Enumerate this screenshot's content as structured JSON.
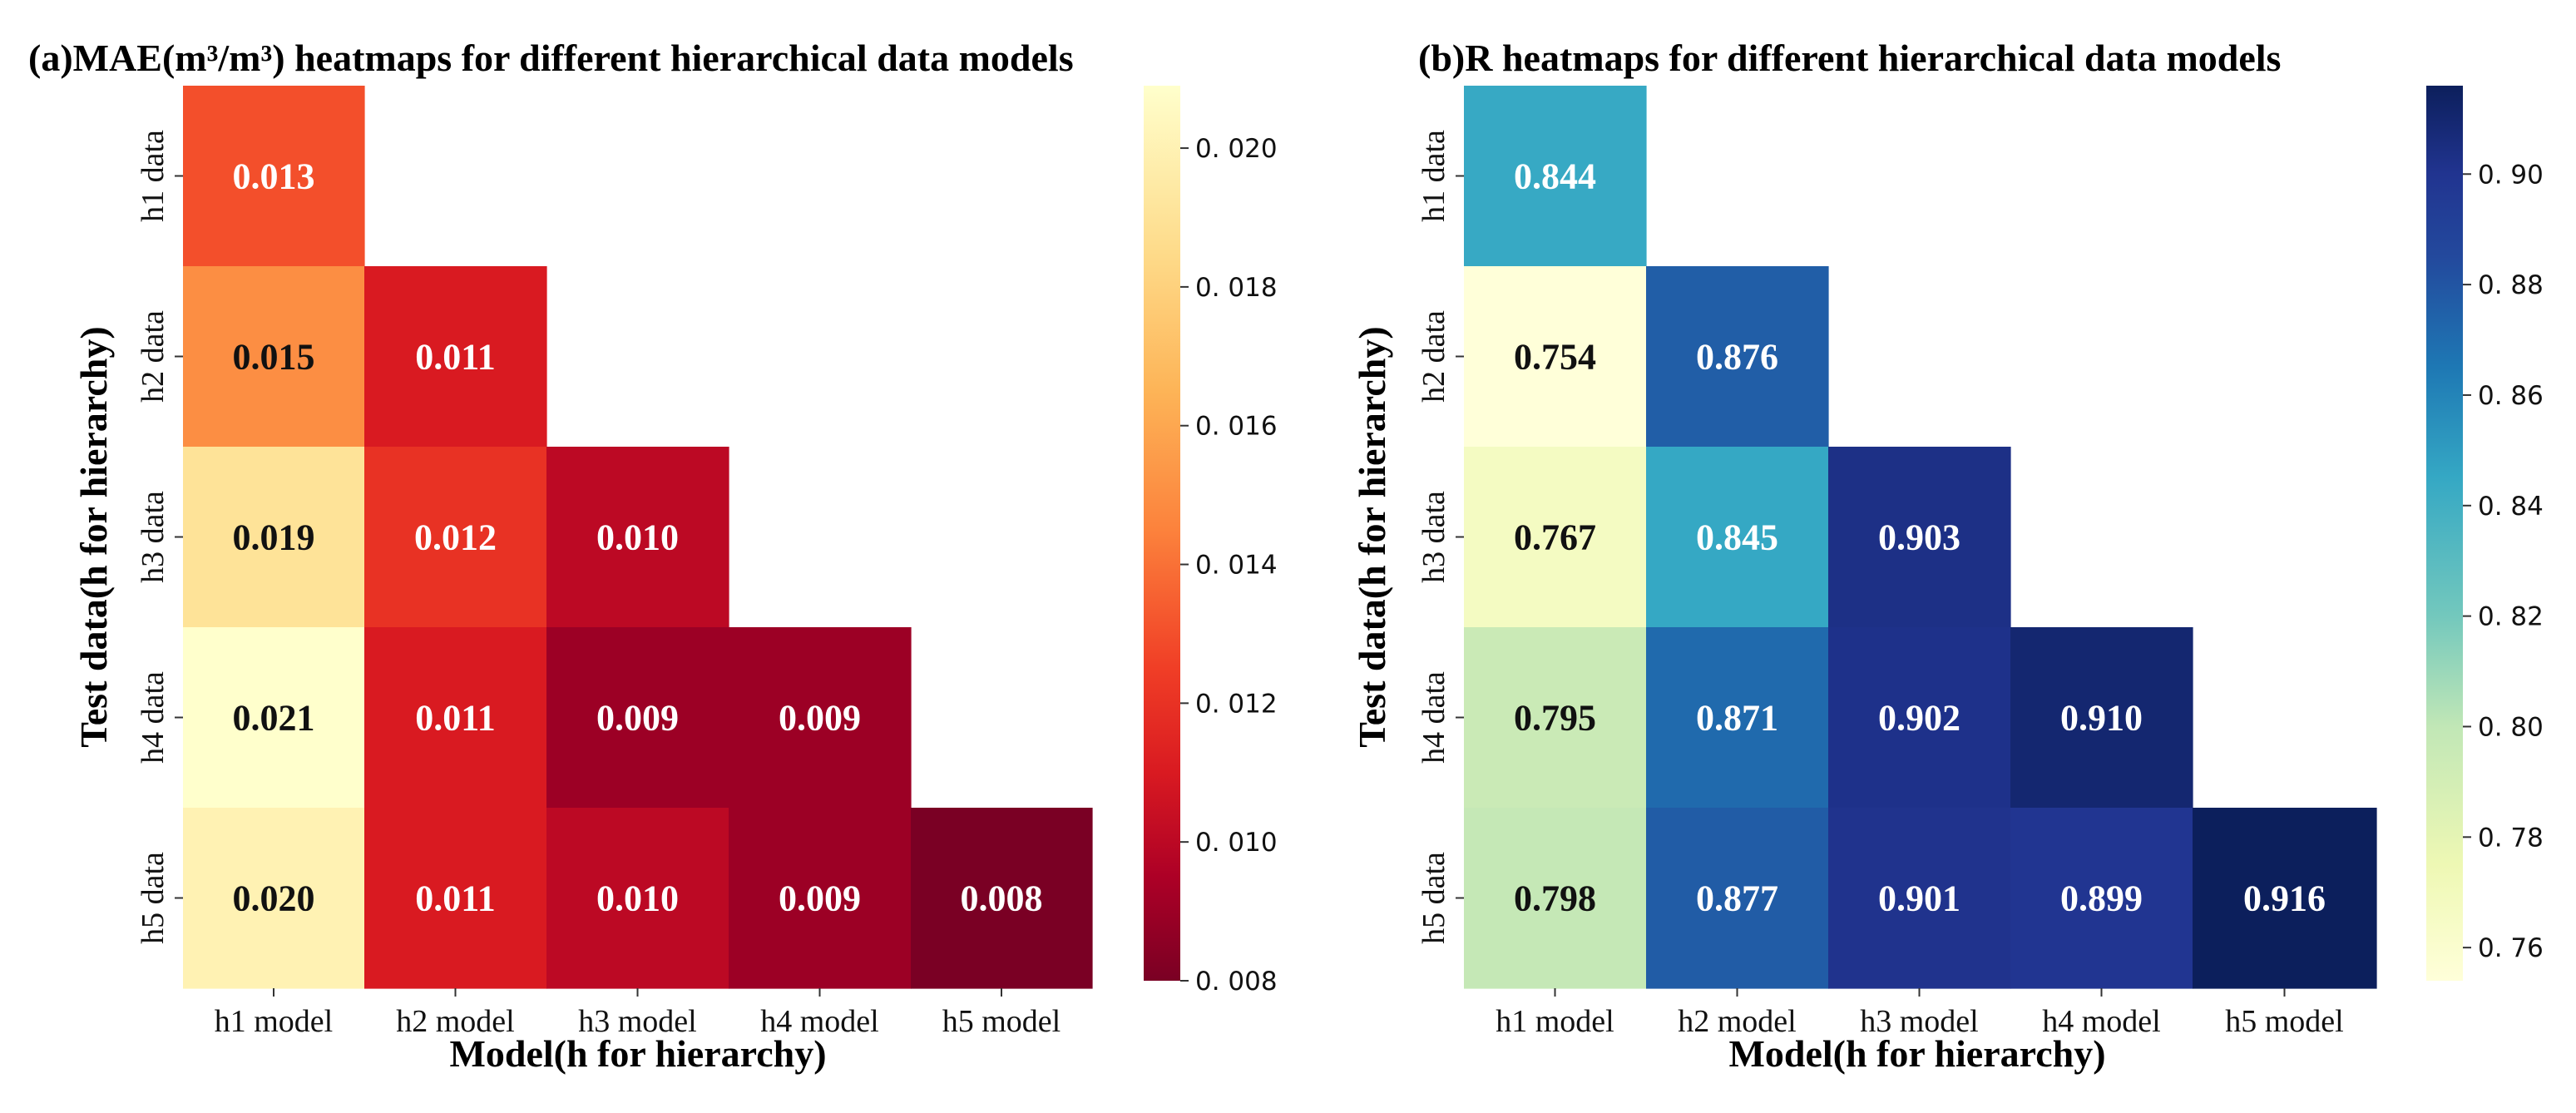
{
  "chart_data": [
    {
      "type": "heatmap",
      "title": "(a)MAE(m³/m³) heatmaps for different hierarchical data models",
      "xlabel": "Model(h for hierarchy)",
      "ylabel": "Test data(h for hierarchy)",
      "x_categories": [
        "h1 model",
        "h2 model",
        "h3 model",
        "h4 model",
        "h5 model"
      ],
      "y_categories": [
        "h1 data",
        "h2 data",
        "h3 data",
        "h4 data",
        "h5 data"
      ],
      "values": [
        [
          0.013,
          null,
          null,
          null,
          null
        ],
        [
          0.015,
          0.011,
          null,
          null,
          null
        ],
        [
          0.019,
          0.012,
          0.01,
          null,
          null
        ],
        [
          0.021,
          0.011,
          0.009,
          0.009,
          null
        ],
        [
          0.02,
          0.011,
          0.01,
          0.009,
          0.008
        ]
      ],
      "cell_labels": [
        [
          "0.013",
          "",
          "",
          "",
          ""
        ],
        [
          "0.015",
          "0.011",
          "",
          "",
          ""
        ],
        [
          "0.019",
          "0.012",
          "0.010",
          "",
          ""
        ],
        [
          "0.021",
          "0.011",
          "0.009",
          "0.009",
          ""
        ],
        [
          "0.020",
          "0.011",
          "0.010",
          "0.009",
          "0.008"
        ]
      ],
      "colormap": "YlOrRd_r",
      "colorbar": {
        "range": [
          0.008,
          0.0209
        ],
        "ticks": [
          0.008,
          0.01,
          0.012,
          0.014,
          0.016,
          0.018,
          0.02
        ],
        "tick_labels": [
          "0. 008",
          "0. 010",
          "0. 012",
          "0. 014",
          "0. 016",
          "0. 018",
          "0. 020"
        ],
        "stops": [
          {
            "value": 0.008,
            "color": "#7a0024"
          },
          {
            "value": 0.0095,
            "color": "#ad0026"
          },
          {
            "value": 0.011,
            "color": "#d91a21"
          },
          {
            "value": 0.0125,
            "color": "#f03e26"
          },
          {
            "value": 0.0145,
            "color": "#fc823c"
          },
          {
            "value": 0.0165,
            "color": "#fdb457"
          },
          {
            "value": 0.0185,
            "color": "#fedb8a"
          },
          {
            "value": 0.0209,
            "color": "#ffffcc"
          }
        ]
      }
    },
    {
      "type": "heatmap",
      "title": "(b)R heatmaps for different hierarchical data models",
      "xlabel": "Model(h for hierarchy)",
      "ylabel": "Test data(h for hierarchy)",
      "x_categories": [
        "h1 model",
        "h2 model",
        "h3 model",
        "h4 model",
        "h5 model"
      ],
      "y_categories": [
        "h1 data",
        "h2 data",
        "h3 data",
        "h4 data",
        "h5 data"
      ],
      "values": [
        [
          0.844,
          null,
          null,
          null,
          null
        ],
        [
          0.754,
          0.876,
          null,
          null,
          null
        ],
        [
          0.767,
          0.845,
          0.903,
          null,
          null
        ],
        [
          0.795,
          0.871,
          0.902,
          0.91,
          null
        ],
        [
          0.798,
          0.877,
          0.901,
          0.899,
          0.916
        ]
      ],
      "cell_labels": [
        [
          "0.844",
          "",
          "",
          "",
          ""
        ],
        [
          "0.754",
          "0.876",
          "",
          "",
          ""
        ],
        [
          "0.767",
          "0.845",
          "0.903",
          "",
          ""
        ],
        [
          "0.795",
          "0.871",
          "0.902",
          "0.910",
          ""
        ],
        [
          "0.798",
          "0.877",
          "0.901",
          "0.899",
          "0.916"
        ]
      ],
      "colormap": "YlGnBu",
      "colorbar": {
        "range": [
          0.754,
          0.916
        ],
        "ticks": [
          0.76,
          0.78,
          0.8,
          0.82,
          0.84,
          0.86,
          0.88,
          0.9
        ],
        "tick_labels": [
          "0. 76",
          "0. 78",
          "0. 80",
          "0. 82",
          "0. 84",
          "0. 86",
          "0. 88",
          "0. 90"
        ],
        "stops": [
          {
            "value": 0.754,
            "color": "#ffffd9"
          },
          {
            "value": 0.775,
            "color": "#eef8b4"
          },
          {
            "value": 0.8,
            "color": "#c1e7b6"
          },
          {
            "value": 0.82,
            "color": "#73c8bd"
          },
          {
            "value": 0.845,
            "color": "#35a8c4"
          },
          {
            "value": 0.865,
            "color": "#1e78b4"
          },
          {
            "value": 0.885,
            "color": "#23499d"
          },
          {
            "value": 0.9,
            "color": "#213490"
          },
          {
            "value": 0.916,
            "color": "#0c1f5c"
          }
        ]
      }
    }
  ]
}
